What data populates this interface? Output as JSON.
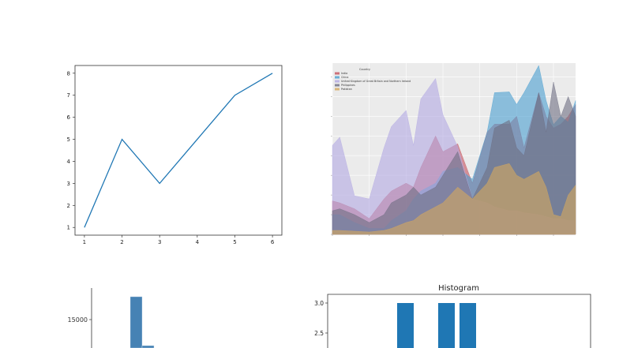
{
  "chart_data": [
    {
      "type": "line",
      "x": [
        1,
        2,
        3,
        4,
        5,
        6
      ],
      "y": [
        1,
        5,
        3,
        5,
        7,
        8
      ],
      "xlim": [
        0.75,
        6.25
      ],
      "ylim": [
        0.65,
        8.35
      ],
      "xticks": [
        "1",
        "2",
        "3",
        "4",
        "5",
        "6"
      ],
      "yticks": [
        "1",
        "2",
        "3",
        "4",
        "5",
        "6",
        "7",
        "8"
      ],
      "color": "#1f77b4",
      "grid": false
    },
    {
      "type": "area",
      "stacked": false,
      "legend_title": "Country",
      "legend_position": "top-left",
      "grid": true,
      "background": "#ebebeb",
      "xlim": [
        1980,
        2013
      ],
      "ylim": [
        0,
        43500
      ],
      "x": [
        1980,
        1981,
        1983,
        1985,
        1987,
        1988,
        1990,
        1991,
        1992,
        1994,
        1995,
        1997,
        1999,
        2001,
        2002,
        2004,
        2005,
        2006,
        2008,
        2009,
        2010,
        2011,
        2012,
        2013
      ],
      "series": [
        {
          "name": "India",
          "color": "#c4525e",
          "values": [
            8500,
            8000,
            6500,
            4000,
            9000,
            11000,
            13000,
            12000,
            17000,
            25000,
            21000,
            23000,
            13000,
            26000,
            28000,
            28000,
            30000,
            22000,
            36000,
            30000,
            27000,
            28000,
            30000,
            33000
          ]
        },
        {
          "name": "China",
          "color": "#4a9fd0",
          "values": [
            5000,
            5000,
            3000,
            1500,
            1500,
            3500,
            6000,
            9000,
            11000,
            13000,
            16000,
            17000,
            14000,
            26000,
            36000,
            36200,
            33000,
            36000,
            42900,
            34000,
            27900,
            30000,
            28500,
            34000
          ]
        },
        {
          "name": "United Kingdom of Great Britain and Northern Ireland",
          "color": "#b3a9e2",
          "values": [
            22600,
            24700,
            9800,
            9000,
            22000,
            27400,
            31500,
            22600,
            34400,
            39600,
            30400,
            22300,
            9000,
            8000,
            7000,
            6000,
            6000,
            5500,
            5000,
            4500,
            4000,
            4000,
            3500,
            3500
          ]
        },
        {
          "name": "Philippines",
          "color": "#6e6e82",
          "values": [
            6000,
            6500,
            5000,
            3000,
            5000,
            8000,
            10000,
            12000,
            10000,
            12000,
            15000,
            21000,
            9000,
            17000,
            27000,
            29000,
            22000,
            20000,
            36000,
            26000,
            38700,
            30000,
            35000,
            30000
          ]
        },
        {
          "name": "Pakistan",
          "color": "#d6a95e",
          "values": [
            1000,
            1000,
            800,
            600,
            1000,
            1500,
            3000,
            3500,
            5000,
            7000,
            8000,
            12000,
            9000,
            13000,
            17000,
            18000,
            15000,
            14000,
            16000,
            12000,
            5000,
            4500,
            10000,
            12500
          ]
        }
      ]
    },
    {
      "type": "bar",
      "partial": true,
      "color": "#4682b4",
      "yticks": [
        "15000"
      ],
      "bars": [
        {
          "value": 17500
        },
        {
          "value": 1500
        }
      ]
    },
    {
      "type": "bar",
      "title": "Histogram",
      "color": "#1f77b4",
      "yticks": [
        "3.0",
        "2.5"
      ],
      "bars": [
        {
          "value": 3
        },
        {
          "value": 3
        },
        {
          "value": 3
        }
      ]
    }
  ]
}
